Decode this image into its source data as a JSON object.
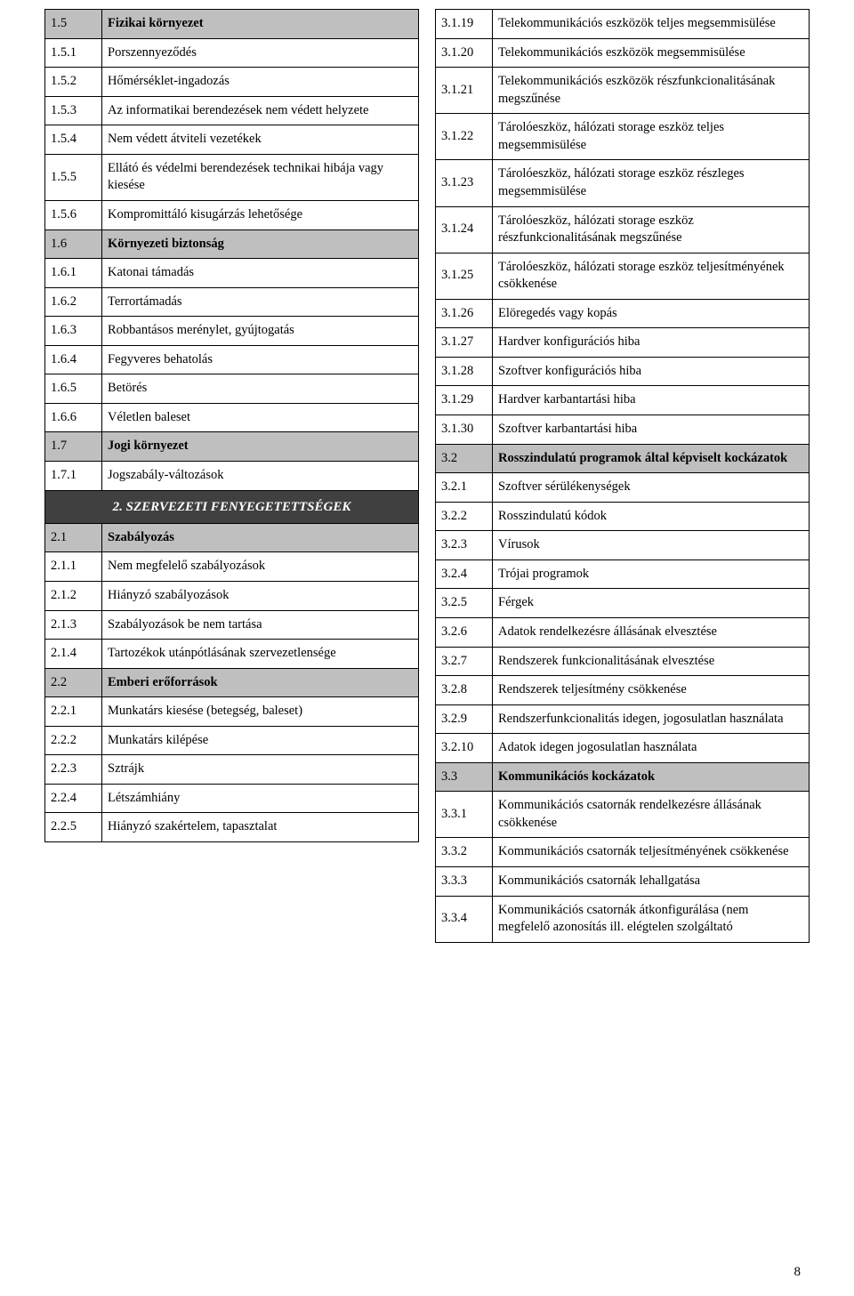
{
  "page_number": "8",
  "left": [
    {
      "code": "1.5",
      "label": "Fizikai környezet",
      "shaded": true
    },
    {
      "code": "1.5.1",
      "label": "Porszennyeződés"
    },
    {
      "code": "1.5.2",
      "label": "Hőmérséklet-ingadozás"
    },
    {
      "code": "1.5.3",
      "label": "Az informatikai berendezések nem védett helyzete"
    },
    {
      "code": "1.5.4",
      "label": "Nem védett átviteli vezetékek"
    },
    {
      "code": "1.5.5",
      "label": "Ellátó és védelmi berendezések technikai hibája vagy kiesése"
    },
    {
      "code": "1.5.6",
      "label": "Kompromittáló kisugárzás lehetősége"
    },
    {
      "code": "1.6",
      "label": "Környezeti biztonság",
      "shaded": true
    },
    {
      "code": "1.6.1",
      "label": "Katonai támadás"
    },
    {
      "code": "1.6.2",
      "label": "Terrortámadás"
    },
    {
      "code": "1.6.3",
      "label": "Robbantásos merénylet, gyújtogatás"
    },
    {
      "code": "1.6.4",
      "label": "Fegyveres behatolás"
    },
    {
      "code": "1.6.5",
      "label": "Betörés"
    },
    {
      "code": "1.6.6",
      "label": "Véletlen baleset"
    },
    {
      "code": "1.7",
      "label": "Jogi környezet",
      "shaded": true
    },
    {
      "code": "1.7.1",
      "label": "Jogszabály-változások"
    },
    {
      "label": "2. SZERVEZETI FENYEGETETTSÉGEK",
      "heading": true
    },
    {
      "code": "2.1",
      "label": "Szabályozás",
      "shaded": true
    },
    {
      "code": "2.1.1",
      "label": "Nem megfelelő szabályozások"
    },
    {
      "code": "2.1.2",
      "label": "Hiányzó szabályozások"
    },
    {
      "code": "2.1.3",
      "label": "Szabályozások be nem tartása"
    },
    {
      "code": "2.1.4",
      "label": "Tartozékok utánpótlásának szervezetlensége"
    },
    {
      "code": "2.2",
      "label": "Emberi erőforrások",
      "shaded": true
    },
    {
      "code": "2.2.1",
      "label": "Munkatárs kiesése (betegség, baleset)"
    },
    {
      "code": "2.2.2",
      "label": "Munkatárs kilépése"
    },
    {
      "code": "2.2.3",
      "label": "Sztrájk"
    },
    {
      "code": "2.2.4",
      "label": "Létszámhiány"
    },
    {
      "code": "2.2.5",
      "label": "Hiányzó szakértelem, tapasztalat"
    }
  ],
  "right": [
    {
      "code": "3.1.19",
      "label": "Telekommunikációs eszközök teljes megsemmisülése"
    },
    {
      "code": "3.1.20",
      "label": "Telekommunikációs eszközök megsemmisülése"
    },
    {
      "code": "3.1.21",
      "label": "Telekommunikációs eszközök részfunkcionalitásának megszűnése"
    },
    {
      "code": "3.1.22",
      "label": "Tárolóeszköz, hálózati storage eszköz teljes megsemmisülése"
    },
    {
      "code": "3.1.23",
      "label": "Tárolóeszköz, hálózati storage eszköz részleges megsemmisülése"
    },
    {
      "code": "3.1.24",
      "label": "Tárolóeszköz, hálózati storage eszköz részfunkcionalitásának megszűnése"
    },
    {
      "code": "3.1.25",
      "label": "Tárolóeszköz, hálózati storage eszköz teljesítményének csökkenése"
    },
    {
      "code": "3.1.26",
      "label": "Elöregedés vagy kopás"
    },
    {
      "code": "3.1.27",
      "label": "Hardver konfigurációs hiba"
    },
    {
      "code": "3.1.28",
      "label": "Szoftver konfigurációs hiba"
    },
    {
      "code": "3.1.29",
      "label": "Hardver karbantartási hiba"
    },
    {
      "code": "3.1.30",
      "label": "Szoftver karbantartási hiba"
    },
    {
      "code": "3.2",
      "label": "Rosszindulatú programok által képviselt kockázatok",
      "shaded": true
    },
    {
      "code": "3.2.1",
      "label": "Szoftver sérülékenységek"
    },
    {
      "code": "3.2.2",
      "label": "Rosszindulatú kódok"
    },
    {
      "code": "3.2.3",
      "label": "Vírusok"
    },
    {
      "code": "3.2.4",
      "label": "Trójai programok"
    },
    {
      "code": "3.2.5",
      "label": "Férgek"
    },
    {
      "code": "3.2.6",
      "label": "Adatok rendelkezésre állásának elvesztése"
    },
    {
      "code": "3.2.7",
      "label": "Rendszerek funkcionalitásának elvesztése"
    },
    {
      "code": "3.2.8",
      "label": "Rendszerek teljesítmény csökkenése"
    },
    {
      "code": "3.2.9",
      "label": "Rendszerfunkcionalitás idegen, jogosulatlan használata"
    },
    {
      "code": "3.2.10",
      "label": "Adatok idegen jogosulatlan használata"
    },
    {
      "code": "3.3",
      "label": "Kommunikációs kockázatok",
      "shaded": true
    },
    {
      "code": "3.3.1",
      "label": "Kommunikációs csatornák rendelkezésre állásának csökkenése"
    },
    {
      "code": "3.3.2",
      "label": "Kommunikációs csatornák teljesítményének csökkenése"
    },
    {
      "code": "3.3.3",
      "label": "Kommunikációs csatornák lehallgatása"
    },
    {
      "code": "3.3.4",
      "label": "Kommunikációs csatornák átkonfigurálása (nem megfelelő azonosítás ill. elégtelen szolgáltató"
    }
  ]
}
